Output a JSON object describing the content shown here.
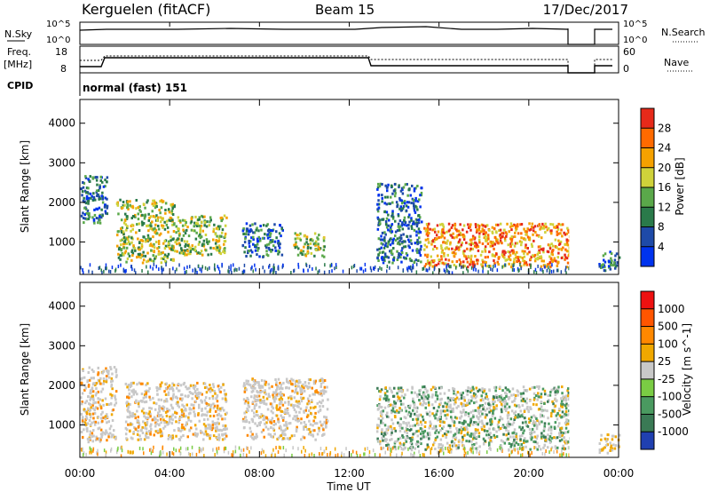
{
  "header": {
    "station": "Kerguelen (fitACF)",
    "beam": "Beam 15",
    "date": "17/Dec/2017"
  },
  "status_panels": {
    "nsky": {
      "label": "N.Sky",
      "right_label": "N.Search",
      "left_ticks": [
        "10^5",
        "10^0"
      ],
      "right_ticks": [
        "10^5",
        "10^0"
      ]
    },
    "freq": {
      "label_line1": "Freq.",
      "label_line2": "[MHz]",
      "left_ticks": [
        "18",
        "8"
      ],
      "right_label": "Nave",
      "right_ticks": [
        "60",
        "0"
      ]
    },
    "cpid": {
      "label": "CPID",
      "text": "normal (fast) 151"
    }
  },
  "x_axis": {
    "label": "Time UT",
    "ticks": [
      "00:00",
      "04:00",
      "08:00",
      "12:00",
      "16:00",
      "20:00",
      "00:00"
    ]
  },
  "chart_data": [
    {
      "type": "heatmap",
      "parameter": "Power",
      "xlabel": "Time UT",
      "ylabel": "Slant Range [km]",
      "xlim_hours": [
        0,
        24
      ],
      "ylim_km": [
        180,
        4600
      ],
      "y_ticks": [
        1000,
        2000,
        3000,
        4000
      ],
      "colorbar": {
        "label": "Power [dB]",
        "ticks": [
          "4",
          "8",
          "12",
          "16",
          "20",
          "24",
          "28"
        ],
        "colors": [
          "#0033ee",
          "#1e4aa8",
          "#2a7a4a",
          "#5aa84a",
          "#cfd23a",
          "#f5a100",
          "#ff6a00",
          "#e62a1a"
        ]
      },
      "data_gaps_hours": [
        [
          21.8,
          22.9
        ]
      ],
      "echo_regions": [
        {
          "t_start": 0.0,
          "t_end": 1.2,
          "r_low": 1500,
          "r_high": 2700,
          "level": "low"
        },
        {
          "t_start": 1.6,
          "t_end": 4.2,
          "r_low": 500,
          "r_high": 2100,
          "level": "medium"
        },
        {
          "t_start": 4.2,
          "t_end": 6.5,
          "r_low": 700,
          "r_high": 1700,
          "level": "medium"
        },
        {
          "t_start": 7.2,
          "t_end": 9.0,
          "r_low": 650,
          "r_high": 1500,
          "level": "low"
        },
        {
          "t_start": 9.5,
          "t_end": 10.9,
          "r_low": 650,
          "r_high": 1250,
          "level": "medium"
        },
        {
          "t_start": 13.2,
          "t_end": 15.2,
          "r_low": 500,
          "r_high": 2500,
          "level": "low"
        },
        {
          "t_start": 15.3,
          "t_end": 21.8,
          "r_low": 400,
          "r_high": 1500,
          "level": "high"
        },
        {
          "t_start": 23.1,
          "t_end": 24.0,
          "r_low": 300,
          "r_high": 800,
          "level": "low"
        }
      ]
    },
    {
      "type": "heatmap",
      "parameter": "Velocity",
      "xlabel": "Time UT",
      "ylabel": "Slant Range [km]",
      "xlim_hours": [
        0,
        24
      ],
      "ylim_km": [
        180,
        4600
      ],
      "y_ticks": [
        1000,
        2000,
        3000,
        4000
      ],
      "colorbar": {
        "label": "Velocity [m s^-1]",
        "ticks": [
          "1000",
          "500",
          "100",
          "25",
          "-25",
          "-100",
          "-500",
          "-1000"
        ],
        "colors": [
          "#2040b0",
          "#3a7a55",
          "#4a9a60",
          "#7acc44",
          "#c8c8c8",
          "#f0a800",
          "#ff8800",
          "#ff5500",
          "#ee1111"
        ]
      },
      "data_gaps_hours": [
        [
          21.8,
          22.9
        ]
      ],
      "echo_regions": [
        {
          "t_start": 0.0,
          "t_end": 1.6,
          "r_low": 600,
          "r_high": 2500,
          "level": "ground"
        },
        {
          "t_start": 2.0,
          "t_end": 6.5,
          "r_low": 650,
          "r_high": 2100,
          "level": "ground"
        },
        {
          "t_start": 7.2,
          "t_end": 11.0,
          "r_low": 650,
          "r_high": 2200,
          "level": "ground"
        },
        {
          "t_start": 13.2,
          "t_end": 21.8,
          "r_low": 400,
          "r_high": 2000,
          "level": "mixed"
        },
        {
          "t_start": 23.1,
          "t_end": 24.0,
          "r_low": 300,
          "r_high": 800,
          "level": "negative"
        }
      ]
    }
  ]
}
